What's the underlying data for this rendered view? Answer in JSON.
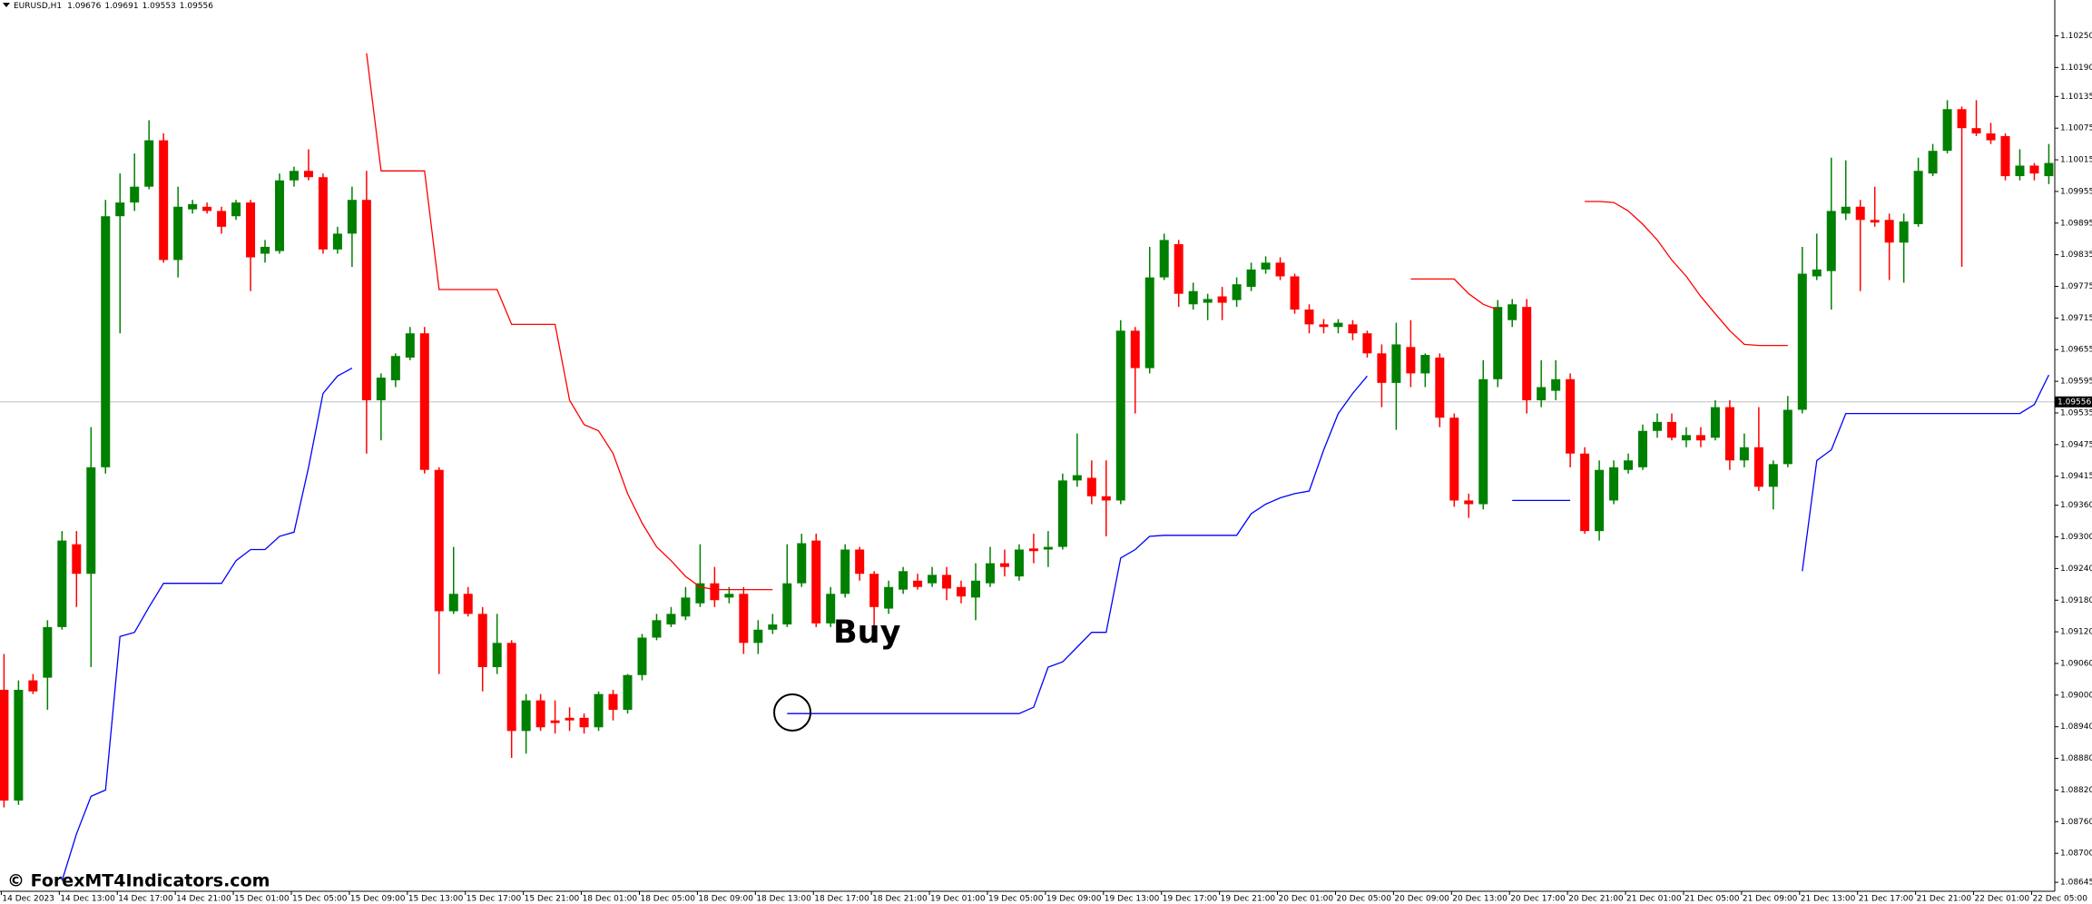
{
  "chart_data": {
    "type": "candlestick",
    "symbol": "EURUSD,H1",
    "header_values": [
      1.09676,
      1.09691,
      1.09553,
      1.09556
    ],
    "last_price": 1.09556,
    "annotation": "Buy",
    "watermark": "© ForexMT4Indicators.com",
    "up_color": "#008000",
    "down_color": "#ff0000",
    "ylim": [
      1.08628,
      1.10318
    ],
    "yticks": [
      {
        "value": 1.1025,
        "label": "1.10250"
      },
      {
        "value": 1.1019,
        "label": "1.10190"
      },
      1.10135,
      1.10075,
      1.10015,
      1.09955,
      1.09895,
      1.09835,
      1.09775,
      1.09715,
      1.09655,
      1.09595,
      1.09535,
      1.09475,
      1.09415,
      {
        "value": 1.0936,
        "label": "1.09360"
      },
      {
        "value": 1.093,
        "label": "1.09300"
      },
      {
        "value": 1.0924,
        "label": "1.09240"
      },
      {
        "value": 1.0918,
        "label": "1.09180"
      },
      {
        "value": 1.0912,
        "label": "1.09120"
      },
      {
        "value": 1.0906,
        "label": "1.09060"
      },
      {
        "value": 1.09,
        "label": "1.09000"
      },
      {
        "value": 1.0894,
        "label": "1.08940"
      },
      {
        "value": 1.0888,
        "label": "1.08880"
      },
      {
        "value": 1.0882,
        "label": "1.08820"
      },
      {
        "value": 1.0876,
        "label": "1.08760"
      },
      {
        "value": 1.087,
        "label": "1.08700"
      },
      1.08645
    ],
    "categories": [
      "14 Dec 2023",
      null,
      null,
      null,
      "14 Dec 13:00",
      null,
      null,
      null,
      "14 Dec 17:00",
      null,
      null,
      null,
      "14 Dec 21:00",
      null,
      null,
      null,
      "15 Dec 01:00",
      null,
      null,
      null,
      "15 Dec 05:00",
      null,
      null,
      null,
      "15 Dec 09:00",
      null,
      null,
      null,
      "15 Dec 13:00",
      null,
      null,
      null,
      "15 Dec 17:00",
      null,
      null,
      null,
      "15 Dec 21:00",
      null,
      null,
      null,
      "18 Dec 01:00",
      null,
      null,
      null,
      "18 Dec 05:00",
      null,
      null,
      null,
      "18 Dec 09:00",
      null,
      null,
      null,
      "18 Dec 13:00",
      null,
      null,
      null,
      "18 Dec 17:00",
      null,
      null,
      null,
      "18 Dec 21:00",
      null,
      null,
      null,
      "19 Dec 01:00",
      null,
      null,
      null,
      "19 Dec 05:00",
      null,
      null,
      null,
      "19 Dec 09:00",
      null,
      null,
      null,
      "19 Dec 13:00",
      null,
      null,
      null,
      "19 Dec 17:00",
      null,
      null,
      null,
      "19 Dec 21:00",
      null,
      null,
      null,
      "20 Dec 01:00",
      null,
      null,
      null,
      "20 Dec 05:00",
      null,
      null,
      null,
      "20 Dec 09:00",
      null,
      null,
      null,
      "20 Dec 13:00",
      null,
      null,
      null,
      "20 Dec 17:00",
      null,
      null,
      null,
      "20 Dec 21:00",
      null,
      null,
      null,
      "21 Dec 01:00",
      null,
      null,
      null,
      "21 Dec 05:00",
      null,
      null,
      null,
      "21 Dec 09:00",
      null,
      null,
      null,
      "21 Dec 13:00",
      null,
      null,
      null,
      "21 Dec 17:00",
      null,
      null,
      null,
      "21 Dec 21:00",
      null,
      null,
      null,
      "22 Dec 01:00",
      null,
      null,
      null,
      "22 Dec 05:00",
      null
    ],
    "open": [
      1.0901,
      1.088,
      1.09028,
      1.09033,
      1.09129,
      1.09286,
      1.0923,
      1.09432,
      1.09908,
      1.09934,
      1.09964,
      1.10052,
      1.09825,
      1.09921,
      1.09926,
      1.09918,
      1.09908,
      1.09934,
      1.09837,
      1.09842,
      1.09976,
      1.09994,
      1.09982,
      1.09845,
      1.09875,
      1.09939,
      1.09559,
      1.09597,
      1.0964,
      1.09686,
      1.09427,
      1.09159,
      1.09192,
      1.09154,
      1.09053,
      1.09099,
      1.08932,
      1.0899,
      1.08952,
      1.08957,
      1.08957,
      1.08939,
      1.09002,
      1.08972,
      1.09038,
      1.09109,
      1.09134,
      1.09149,
      1.09174,
      1.09212,
      1.09185,
      1.09192,
      1.09099,
      1.09124,
      1.09134,
      1.09212,
      1.09293,
      1.09136,
      1.09192,
      1.09276,
      1.0923,
      1.09164,
      1.092,
      1.09217,
      1.09212,
      1.09228,
      1.09205,
      1.09185,
      1.09212,
      1.0925,
      1.09225,
      1.09278,
      1.09276,
      1.09281,
      1.09407,
      1.09412,
      1.09377,
      1.09369,
      1.09691,
      1.0962,
      1.09792,
      1.09855,
      1.09741,
      1.09744,
      1.09756,
      1.09749,
      1.09774,
      1.09807,
      1.0982,
      1.09794,
      1.09731,
      1.09703,
      1.09698,
      1.09703,
      1.09686,
      1.09648,
      1.09592,
      1.0966,
      1.0961,
      1.0964,
      1.09526,
      1.09369,
      1.09362,
      1.09599,
      1.09711,
      1.09736,
      1.09559,
      1.09577,
      1.09599,
      1.09458,
      1.09311,
      1.09369,
      1.09427,
      1.09432,
      1.09501,
      1.09518,
      1.09483,
      1.09493,
      1.09488,
      1.09546,
      1.09445,
      1.0947,
      1.09395,
      1.09438,
      1.09541,
      1.09794,
      1.09804,
      1.09913,
      1.09926,
      1.09901,
      1.09901,
      1.09858,
      1.09893,
      1.09989,
      1.10032,
      1.10111,
      1.10075,
      1.10065,
      1.1006,
      1.09984,
      1.10004,
      1.09984
    ],
    "high": [
      1.09078,
      1.09028,
      1.0904,
      1.09142,
      1.09311,
      1.09311,
      1.09508,
      1.09939,
      1.09989,
      1.10027,
      1.1009,
      1.10065,
      1.09964,
      1.09939,
      1.09934,
      1.09926,
      1.09939,
      1.09939,
      1.09863,
      1.09989,
      1.10002,
      1.10035,
      1.09989,
      1.09888,
      1.09964,
      1.09994,
      1.0961,
      1.09648,
      1.09698,
      1.09698,
      1.09432,
      1.09281,
      1.09205,
      1.09167,
      1.09154,
      1.09104,
      1.09002,
      1.09002,
      1.0899,
      1.08977,
      1.08965,
      1.09007,
      1.0901,
      1.0904,
      1.09116,
      1.09154,
      1.09167,
      1.09205,
      1.09286,
      1.09243,
      1.09205,
      1.09205,
      1.09142,
      1.09154,
      1.09286,
      1.09306,
      1.09306,
      1.09205,
      1.09286,
      1.09281,
      1.09235,
      1.09217,
      1.09243,
      1.0923,
      1.09243,
      1.09243,
      1.09217,
      1.0925,
      1.09281,
      1.09276,
      1.09286,
      1.09306,
      1.09311,
      1.0942,
      1.09496,
      1.09445,
      1.09445,
      1.09711,
      1.09698,
      1.0985,
      1.09875,
      1.09863,
      1.09782,
      1.09761,
      1.09774,
      1.09792,
      1.0982,
      1.09832,
      1.0983,
      1.09799,
      1.09741,
      1.09713,
      1.09713,
      1.09711,
      1.09691,
      1.09665,
      1.09706,
      1.09711,
      1.09648,
      1.09648,
      1.09534,
      1.09382,
      1.09635,
      1.09749,
      1.09751,
      1.09751,
      1.09635,
      1.09635,
      1.0961,
      1.0947,
      1.09445,
      1.09445,
      1.09458,
      1.09513,
      1.09534,
      1.09534,
      1.09508,
      1.09508,
      1.09559,
      1.09559,
      1.09496,
      1.09546,
      1.09445,
      1.09567,
      1.0985,
      1.09875,
      1.10019,
      1.10014,
      1.09939,
      1.09964,
      1.09913,
      1.09913,
      1.10019,
      1.10045,
      1.10128,
      1.10116,
      1.10128,
      1.10085,
      1.10065,
      1.10035,
      1.10009,
      1.10045
    ],
    "low": [
      1.08787,
      1.08792,
      1.09002,
      1.08972,
      1.09124,
      1.09167,
      1.09053,
      1.0942,
      1.09686,
      1.09918,
      1.09959,
      1.0982,
      1.09792,
      1.09913,
      1.09913,
      1.09875,
      1.09901,
      1.09766,
      1.0982,
      1.09837,
      1.09964,
      1.09976,
      1.09837,
      1.09837,
      1.09812,
      1.09458,
      1.09483,
      1.09584,
      1.09635,
      1.0942,
      1.0904,
      1.09154,
      1.09149,
      1.09007,
      1.0904,
      1.08881,
      1.08889,
      1.08932,
      1.08927,
      1.08932,
      1.08927,
      1.08932,
      1.08952,
      1.08965,
      1.09028,
      1.09104,
      1.09129,
      1.09142,
      1.09167,
      1.09167,
      1.09174,
      1.09078,
      1.09078,
      1.09116,
      1.09129,
      1.09205,
      1.09129,
      1.09129,
      1.09185,
      1.09217,
      1.09104,
      1.09154,
      1.09192,
      1.092,
      1.09205,
      1.0918,
      1.09174,
      1.09142,
      1.09205,
      1.09225,
      1.09217,
      1.0925,
      1.09243,
      1.09276,
      1.09395,
      1.09362,
      1.09301,
      1.09362,
      1.09534,
      1.0961,
      1.09787,
      1.09736,
      1.09731,
      1.09711,
      1.09711,
      1.09736,
      1.09766,
      1.09799,
      1.09787,
      1.09723,
      1.09686,
      1.09686,
      1.09686,
      1.09673,
      1.0964,
      1.09546,
      1.09503,
      1.09584,
      1.09584,
      1.09508,
      1.09357,
      1.09336,
      1.09352,
      1.09584,
      1.09698,
      1.09534,
      1.09546,
      1.09559,
      1.09432,
      1.09306,
      1.09293,
      1.09362,
      1.0942,
      1.09427,
      1.09488,
      1.09483,
      1.0947,
      1.0947,
      1.09483,
      1.09427,
      1.09432,
      1.09387,
      1.09352,
      1.09432,
      1.09534,
      1.09787,
      1.09731,
      1.09901,
      1.09766,
      1.09888,
      1.09787,
      1.09782,
      1.09888,
      1.09984,
      1.10027,
      1.09812,
      1.1006,
      1.10045,
      1.09976,
      1.09976,
      1.09976,
      1.09969
    ],
    "close": [
      1.088,
      1.0901,
      1.09007,
      1.09129,
      1.09293,
      1.0923,
      1.09432,
      1.09908,
      1.09934,
      1.09964,
      1.10052,
      1.09825,
      1.09926,
      1.09931,
      1.09918,
      1.09888,
      1.09934,
      1.0983,
      1.0985,
      1.09976,
      1.09994,
      1.09982,
      1.09845,
      1.09875,
      1.09939,
      1.09559,
      1.09602,
      1.09643,
      1.09686,
      1.09427,
      1.09159,
      1.09192,
      1.09154,
      1.09053,
      1.09099,
      1.08932,
      1.0899,
      1.08939,
      1.08947,
      1.08952,
      1.08939,
      1.09002,
      1.08972,
      1.09038,
      1.09109,
      1.09142,
      1.09154,
      1.09185,
      1.09212,
      1.0918,
      1.09192,
      1.09099,
      1.09124,
      1.09134,
      1.09212,
      1.09288,
      1.09136,
      1.09192,
      1.09276,
      1.0923,
      1.09167,
      1.09205,
      1.09235,
      1.09205,
      1.09228,
      1.09202,
      1.09187,
      1.09217,
      1.0925,
      1.09243,
      1.09276,
      1.09273,
      1.09281,
      1.09407,
      1.09417,
      1.09377,
      1.09369,
      1.09691,
      1.0962,
      1.09792,
      1.09863,
      1.09761,
      1.09766,
      1.09751,
      1.09744,
      1.09779,
      1.09807,
      1.0982,
      1.09794,
      1.09731,
      1.09703,
      1.09698,
      1.09706,
      1.09686,
      1.09648,
      1.09592,
      1.09665,
      1.0961,
      1.09645,
      1.09526,
      1.09369,
      1.09362,
      1.09599,
      1.09736,
      1.09741,
      1.09559,
      1.09584,
      1.09599,
      1.09458,
      1.09311,
      1.09427,
      1.09432,
      1.09445,
      1.09501,
      1.09518,
      1.09488,
      1.09493,
      1.09483,
      1.09546,
      1.09445,
      1.0947,
      1.09395,
      1.09438,
      1.09541,
      1.09799,
      1.09807,
      1.09918,
      1.09926,
      1.09901,
      1.09896,
      1.09858,
      1.09898,
      1.09994,
      1.10032,
      1.10111,
      1.10075,
      1.10065,
      1.10052,
      1.09984,
      1.10004,
      1.09989,
      1.10009
    ],
    "series": [
      {
        "color": "#ff0000",
        "values": [
          null,
          null,
          null,
          null,
          null,
          null,
          null,
          null,
          null,
          null,
          null,
          null,
          null,
          null,
          null,
          null,
          null,
          null,
          null,
          null,
          null,
          null,
          null,
          null,
          null,
          1.10217,
          1.09994,
          1.09994,
          1.09994,
          1.09994,
          1.09769,
          1.09769,
          1.09769,
          1.09769,
          1.09769,
          1.09703,
          1.09703,
          1.09703,
          1.09703,
          1.09559,
          1.09513,
          1.09501,
          1.09458,
          1.09382,
          1.09326,
          1.09281,
          1.09255,
          1.09225,
          1.09205,
          1.092,
          1.092,
          1.092,
          1.092,
          1.092,
          null,
          null,
          null,
          null,
          null,
          null,
          null,
          null,
          null,
          null,
          null,
          null,
          null,
          null,
          null,
          null,
          null,
          null,
          null,
          null,
          null,
          null,
          null,
          null,
          null,
          null,
          null,
          null,
          null,
          null,
          null,
          null,
          null,
          null,
          null,
          null,
          null,
          null,
          null,
          null,
          null,
          null,
          null,
          1.09789,
          1.09789,
          1.09789,
          1.09789,
          1.09761,
          1.09741,
          1.09731,
          null,
          null,
          null,
          null,
          null,
          1.09936,
          1.09936,
          1.09934,
          1.09918,
          1.09893,
          1.09863,
          1.09825,
          1.09794,
          1.09756,
          1.09723,
          1.09691,
          1.09665,
          1.09663,
          1.09663,
          1.09663,
          null,
          null,
          null,
          null,
          null,
          null,
          null,
          null,
          null,
          null,
          null,
          null,
          null,
          null,
          null,
          null,
          null,
          null
        ]
      },
      {
        "color": "#0000ff",
        "values": [
          null,
          null,
          null,
          null,
          1.08648,
          1.08737,
          1.08808,
          1.0882,
          1.09111,
          1.09119,
          1.09167,
          1.09212,
          1.09212,
          1.09212,
          1.09212,
          1.09212,
          1.09255,
          1.09276,
          1.09276,
          1.09301,
          1.09309,
          1.09432,
          1.09572,
          1.09605,
          1.0962,
          null,
          null,
          null,
          null,
          null,
          null,
          null,
          null,
          null,
          null,
          null,
          null,
          null,
          null,
          null,
          null,
          null,
          null,
          null,
          null,
          null,
          null,
          null,
          null,
          null,
          null,
          null,
          null,
          null,
          1.08965,
          1.08965,
          1.08965,
          1.08965,
          1.08965,
          1.08965,
          1.08965,
          1.08965,
          1.08965,
          1.08965,
          1.08965,
          1.08965,
          1.08965,
          1.08965,
          1.08965,
          1.08965,
          1.08965,
          1.08977,
          1.09053,
          1.09063,
          1.09091,
          1.09119,
          1.09119,
          1.0926,
          1.09276,
          1.09301,
          1.09303,
          1.09303,
          1.09303,
          1.09303,
          1.09303,
          1.09303,
          1.09344,
          1.09362,
          1.09374,
          1.09382,
          1.09387,
          1.09465,
          1.09534,
          1.09572,
          1.09605,
          null,
          null,
          null,
          null,
          null,
          null,
          null,
          null,
          null,
          1.09369,
          1.09369,
          1.09369,
          1.09369,
          1.09369,
          null,
          null,
          null,
          null,
          null,
          null,
          null,
          null,
          null,
          null,
          null,
          null,
          null,
          null,
          null,
          1.09235,
          1.09445,
          1.09465,
          1.09534,
          1.09534,
          1.09534,
          1.09534,
          1.09534,
          1.09534,
          1.09534,
          1.09534,
          1.09534,
          1.09534,
          1.09534,
          1.09534,
          1.09534,
          1.09551,
          1.09607
        ]
      }
    ]
  }
}
